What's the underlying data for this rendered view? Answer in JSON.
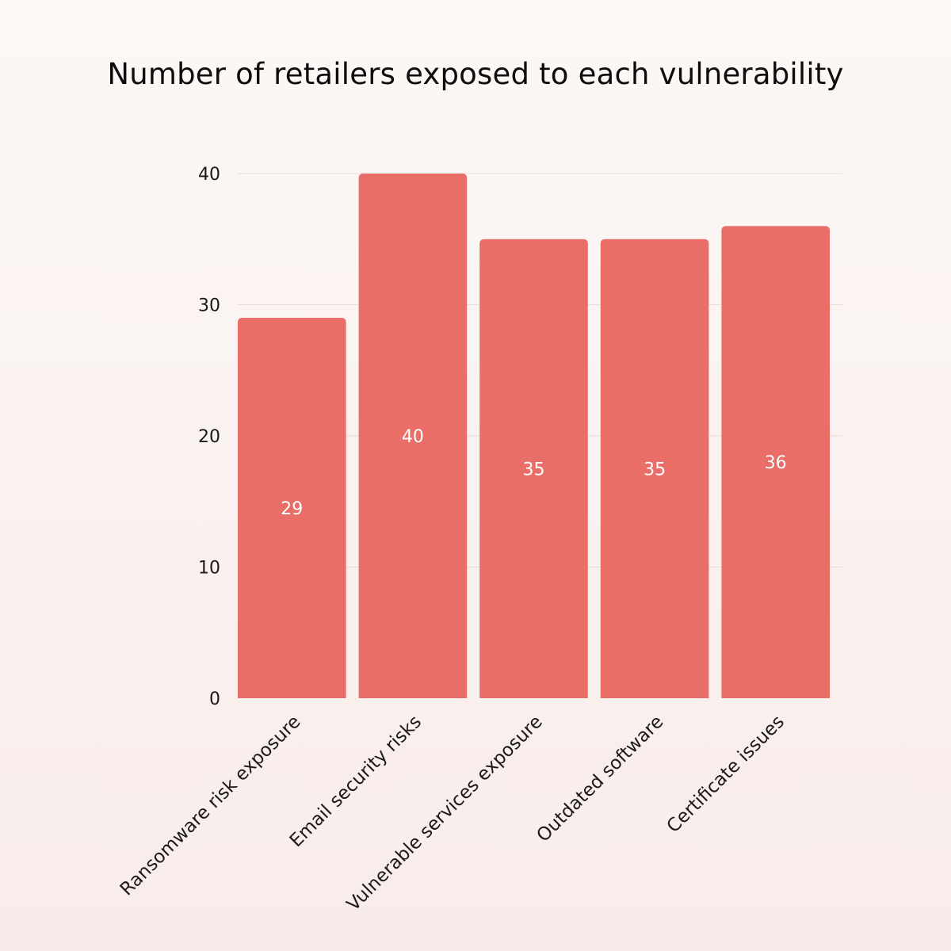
{
  "chart_data": {
    "type": "bar",
    "title": "Number of retailers exposed to each vulnerability",
    "categories": [
      "Ransomware risk exposure",
      "Email security risks",
      "Vulnerable services exposure",
      "Outdated software",
      "Certificate issues"
    ],
    "values": [
      29,
      40,
      35,
      35,
      36
    ],
    "ylim": [
      0,
      40
    ],
    "yticks": [
      0,
      10,
      20,
      30,
      40
    ],
    "xlabel": "",
    "ylabel": "",
    "grid": true,
    "bar_color": "#e96e68",
    "data_label_color": "#ffffff"
  }
}
